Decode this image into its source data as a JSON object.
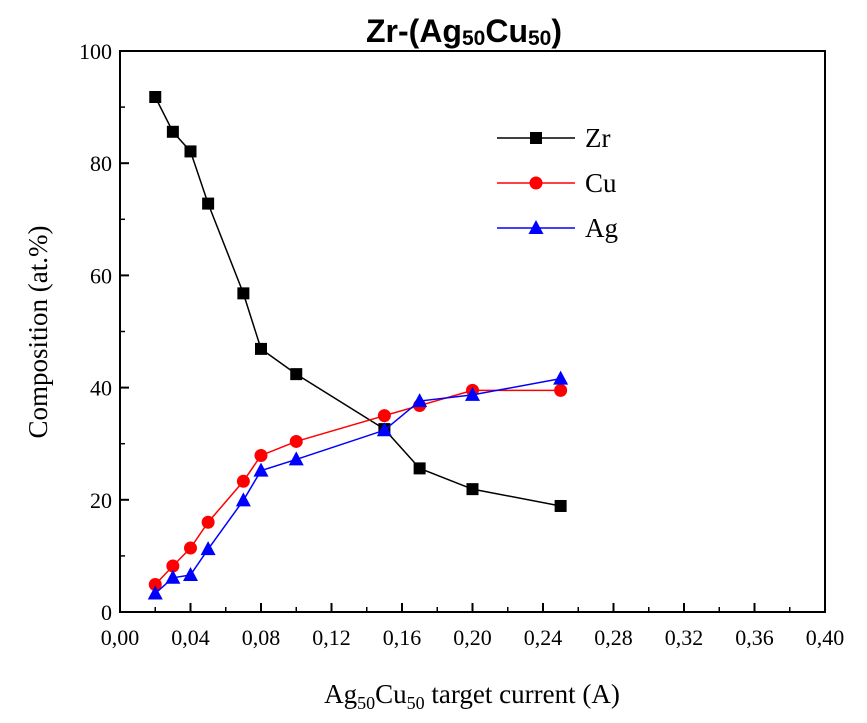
{
  "chart_data": {
    "type": "line",
    "title": {
      "main": "Zr-(Ag",
      "sub1": "50",
      "mid": "Cu",
      "sub2": "50",
      "end": ")"
    },
    "xlabel": {
      "p1": "Ag",
      "s1": "50",
      "p2": "Cu",
      "s2": "50",
      "p3": " target current (A)"
    },
    "ylabel": "Composition (at.%)",
    "xlim": [
      0.0,
      0.4
    ],
    "ylim": [
      0,
      100
    ],
    "x_ticks": [
      0.0,
      0.04,
      0.08,
      0.12,
      0.16,
      0.2,
      0.24,
      0.28,
      0.32,
      0.36,
      0.4
    ],
    "x_tick_labels": [
      "0,00",
      "0,04",
      "0,08",
      "0,12",
      "0,16",
      "0,20",
      "0,24",
      "0,28",
      "0,32",
      "0,36",
      "0,40"
    ],
    "y_ticks": [
      0,
      20,
      40,
      60,
      80,
      100
    ],
    "y_tick_labels": [
      "0",
      "20",
      "40",
      "60",
      "80",
      "100"
    ],
    "grid": false,
    "legend_position": "top-right",
    "series": [
      {
        "name": "Zr",
        "color": "#000000",
        "marker": "square",
        "x": [
          0.02,
          0.03,
          0.04,
          0.05,
          0.07,
          0.08,
          0.1,
          0.15,
          0.17,
          0.2,
          0.25
        ],
        "y": [
          91.8,
          85.6,
          82.1,
          72.8,
          56.8,
          46.9,
          42.4,
          32.6,
          25.6,
          21.9,
          18.9
        ]
      },
      {
        "name": "Cu",
        "color": "#ff0000",
        "marker": "circle",
        "x": [
          0.02,
          0.03,
          0.04,
          0.05,
          0.07,
          0.08,
          0.1,
          0.15,
          0.17,
          0.2,
          0.25
        ],
        "y": [
          4.9,
          8.2,
          11.4,
          16.0,
          23.3,
          27.9,
          30.4,
          35.0,
          36.8,
          39.5,
          39.5
        ]
      },
      {
        "name": "Ag",
        "color": "#0000ff",
        "marker": "triangle",
        "x": [
          0.02,
          0.03,
          0.04,
          0.05,
          0.07,
          0.08,
          0.1,
          0.15,
          0.17,
          0.2,
          0.25
        ],
        "y": [
          3.3,
          6.1,
          6.6,
          11.2,
          19.9,
          25.2,
          27.2,
          32.4,
          37.6,
          38.7,
          41.6
        ]
      }
    ]
  }
}
